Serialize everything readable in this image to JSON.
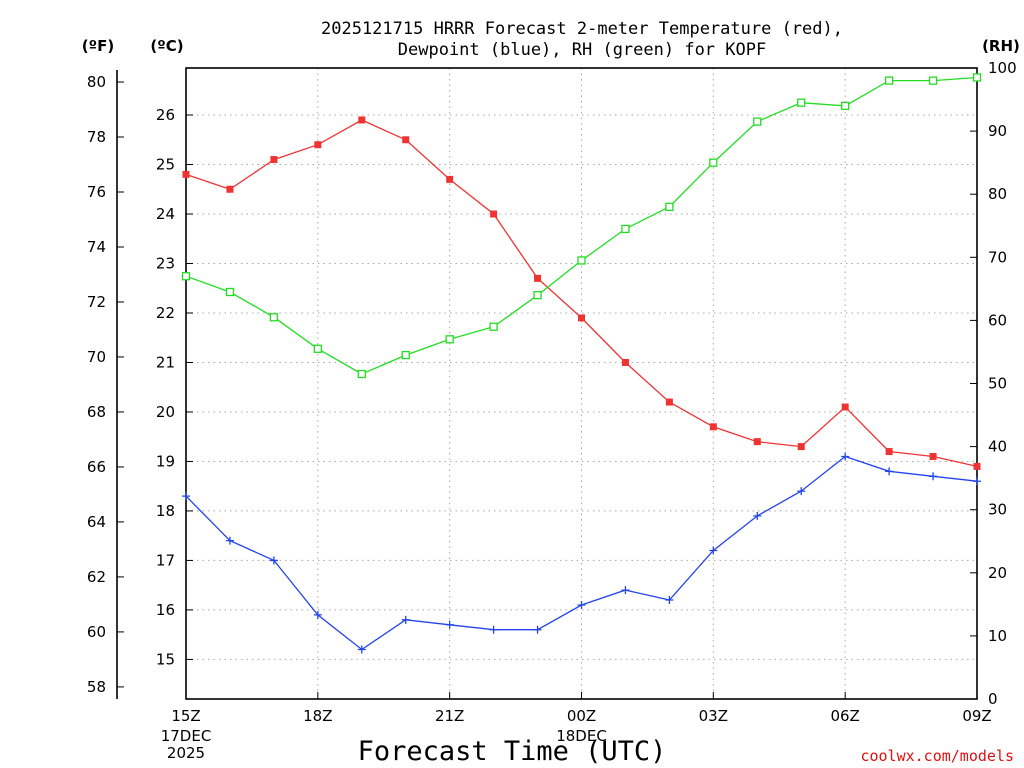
{
  "chart_data": {
    "type": "line",
    "title_lines": [
      "2025121715 HRRR Forecast 2-meter Temperature (red),",
      "Dewpoint (blue), RH (green) for KOPF"
    ],
    "xlabel": "Forecast Time (UTC)",
    "credit": "coolwx.com/models",
    "unit_labels": {
      "fahrenheit": "(ºF)",
      "celsius": "(ºC)",
      "rh": "(RH)"
    },
    "hours": [
      0,
      1,
      2,
      3,
      4,
      5,
      6,
      7,
      8,
      9,
      10,
      11,
      12,
      13,
      14,
      15,
      16,
      17,
      18
    ],
    "x_ticks": [
      {
        "hour": 0,
        "label": "15Z",
        "sub": [
          "17DEC",
          "2025"
        ]
      },
      {
        "hour": 3,
        "label": "18Z",
        "sub": []
      },
      {
        "hour": 6,
        "label": "21Z",
        "sub": []
      },
      {
        "hour": 9,
        "label": "00Z",
        "sub": [
          "18DEC"
        ]
      },
      {
        "hour": 12,
        "label": "03Z",
        "sub": []
      },
      {
        "hour": 15,
        "label": "06Z",
        "sub": []
      },
      {
        "hour": 18,
        "label": "09Z",
        "sub": []
      }
    ],
    "axes": {
      "celsius": {
        "range": [
          14.2,
          26.95
        ],
        "ticks": [
          15,
          16,
          17,
          18,
          19,
          20,
          21,
          22,
          23,
          24,
          25,
          26
        ]
      },
      "fahrenheit": {
        "ticks": [
          58,
          60,
          62,
          64,
          66,
          68,
          70,
          72,
          74,
          76,
          78,
          80
        ]
      },
      "rh": {
        "range": [
          0,
          100
        ],
        "ticks": [
          0,
          10,
          20,
          30,
          40,
          50,
          60,
          70,
          80,
          90,
          100
        ]
      }
    },
    "series": [
      {
        "name": "2-meter Temperature",
        "unit": "C",
        "color": "#ee3333",
        "marker": "filled-square",
        "values": [
          24.8,
          24.5,
          25.1,
          25.4,
          25.9,
          25.5,
          24.7,
          24.0,
          22.7,
          21.9,
          21.0,
          20.2,
          19.7,
          19.4,
          19.3,
          20.1,
          19.2,
          19.1,
          18.9
        ]
      },
      {
        "name": "Dewpoint",
        "unit": "C",
        "color": "#2244ee",
        "marker": "plus",
        "values": [
          18.3,
          17.4,
          17.0,
          15.9,
          15.2,
          15.8,
          15.7,
          15.6,
          15.6,
          16.1,
          16.4,
          16.2,
          17.2,
          17.9,
          18.4,
          19.1,
          18.8,
          18.7,
          18.6
        ]
      },
      {
        "name": "RH",
        "unit": "%",
        "color": "#22dd22",
        "marker": "open-square",
        "values": [
          67,
          64.5,
          60.5,
          55.5,
          51.5,
          54.5,
          57,
          59,
          64,
          69.5,
          74.5,
          78,
          85,
          91.5,
          94.5,
          94,
          98,
          98,
          98.5
        ]
      }
    ]
  }
}
